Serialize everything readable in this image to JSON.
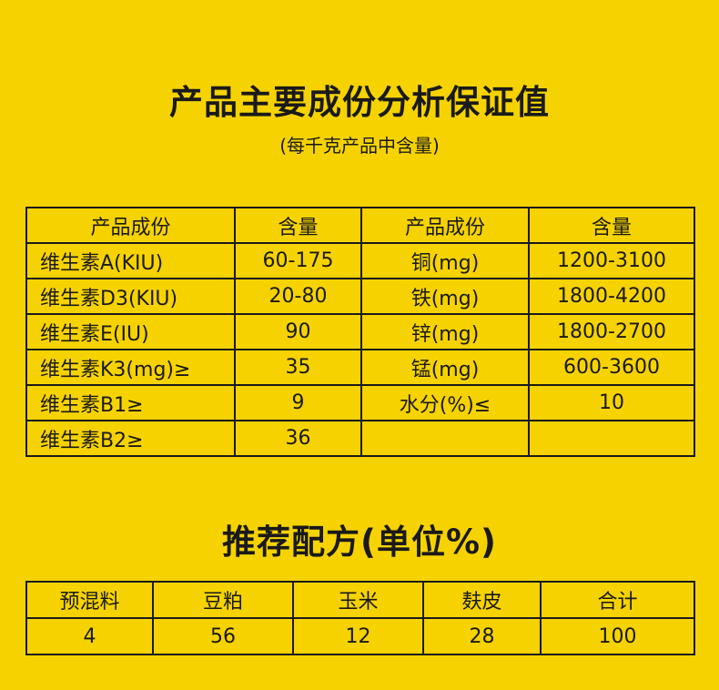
{
  "title": "产品主要成份分析保证值",
  "subtitle": "(每千克产品中含量)",
  "analysis_table": {
    "headers": [
      "产品成份",
      "含量",
      "产品成份",
      "含量"
    ],
    "rows": [
      [
        "维生素A(KIU)",
        "60-175",
        "铜(mg)",
        "1200-3100"
      ],
      [
        "维生素D3(KIU)",
        "20-80",
        "铁(mg)",
        "1800-4200"
      ],
      [
        "维生素E(IU)",
        "90",
        "锌(mg)",
        "1800-2700"
      ],
      [
        "维生素K3(mg)≥",
        "35",
        "锰(mg)",
        "600-3600"
      ],
      [
        "维生素B1≥",
        "9",
        "水分(%)≤",
        "10"
      ],
      [
        "维生素B2≥",
        "36",
        "",
        ""
      ]
    ]
  },
  "formula_title": "推荐配方(单位%)",
  "formula_table": {
    "headers": [
      "预混料",
      "豆粕",
      "玉米",
      "麸皮",
      "合计"
    ],
    "values": [
      "4",
      "56",
      "12",
      "28",
      "100"
    ]
  }
}
